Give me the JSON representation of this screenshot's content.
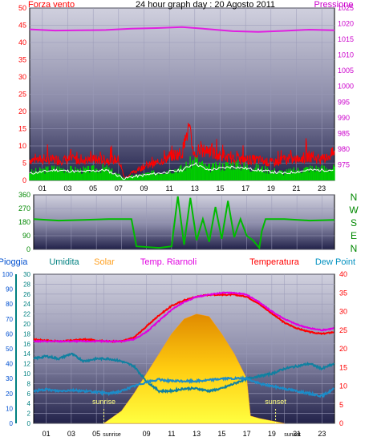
{
  "chart_data": [
    {
      "type": "line",
      "title": "24 hour graph day : 20 Agosto 2011",
      "left_axis_label": "Forza vento",
      "right_axis_label": "Pressione",
      "ylim_left": [
        0,
        50
      ],
      "yticks_left": [
        0,
        5,
        10,
        15,
        20,
        25,
        30,
        35,
        40,
        45,
        50
      ],
      "ylim_right": [
        970,
        1025
      ],
      "yticks_right": [
        975,
        980,
        985,
        990,
        995,
        1000,
        1005,
        1010,
        1015,
        1020,
        1025
      ],
      "xlim": [
        0,
        24
      ],
      "x_tick_labels": [
        "01",
        "03",
        "05",
        "07",
        "09",
        "11",
        "13",
        "15",
        "17",
        "19",
        "21",
        "23"
      ],
      "colors": {
        "pressure": "#e020e0",
        "gust": "#ff0000",
        "wind_avg": "#00cc00",
        "wind_dir_line": "#ffffff",
        "title": "#000000",
        "left_label": "#ff0000",
        "right_label": "#cc00cc"
      },
      "series": [
        {
          "name": "Pressione",
          "axis": "right",
          "x": [
            0,
            2,
            4,
            6,
            8,
            10,
            12,
            14,
            16,
            18,
            20,
            22,
            24
          ],
          "values": [
            1018.2,
            1017.8,
            1017.9,
            1018.0,
            1018.4,
            1018.6,
            1018.9,
            1018.3,
            1017.6,
            1017.4,
            1017.7,
            1018.1,
            1017.9
          ]
        },
        {
          "axis": "left",
          "x": [
            0,
            1,
            2,
            3,
            4,
            5,
            6,
            7,
            7.5,
            8,
            9,
            10,
            11,
            12,
            12.5,
            13,
            14,
            15,
            16,
            17,
            18,
            19,
            20,
            21,
            22,
            23,
            24
          ],
          "values": [
            6,
            6,
            6,
            6,
            6,
            6,
            6,
            6,
            0.5,
            2,
            4,
            5,
            7,
            8,
            15,
            7,
            9,
            7,
            6,
            6,
            6,
            5,
            6,
            6,
            7,
            6,
            8
          ]
        },
        {
          "axis": "left",
          "x": [
            0,
            2,
            4,
            6,
            7.5,
            8,
            10,
            12,
            13,
            14,
            16,
            18,
            20,
            22,
            24
          ],
          "values": [
            2,
            3,
            2.5,
            3,
            0.5,
            1,
            2,
            3,
            5,
            3,
            4,
            3,
            2,
            3,
            3
          ]
        }
      ]
    },
    {
      "type": "line",
      "right_axis_label": "N W S E N",
      "ylim": [
        0,
        360
      ],
      "yticks": [
        0,
        90,
        180,
        270,
        360
      ],
      "xlim": [
        0,
        24
      ],
      "colors": {
        "direction": "#00bb00",
        "side_label": "#008800"
      },
      "series": [
        {
          "x": [
            0,
            2,
            4,
            6,
            7.8,
            8.2,
            10,
            11,
            11.5,
            12,
            12.5,
            13,
            13.5,
            14,
            14.5,
            15,
            15.5,
            16,
            16.5,
            17,
            17.5,
            18,
            18.2,
            18.5,
            20,
            22,
            24
          ],
          "values": [
            200,
            190,
            195,
            200,
            200,
            20,
            10,
            20,
            350,
            30,
            340,
            60,
            200,
            50,
            280,
            70,
            320,
            80,
            200,
            90,
            60,
            10,
            120,
            200,
            200,
            190,
            195
          ]
        }
      ]
    },
    {
      "type": "area",
      "legend": [
        "Pioggia",
        "Umidita",
        "Solar",
        "Temp. Riarnoli",
        "Temperatura",
        "Dew Point"
      ],
      "legend_colors": [
        "#0050d0",
        "#008080",
        "#ffa020",
        "#e000e0",
        "#ff0000",
        "#0090c0"
      ],
      "axis_pioggia": {
        "ylim": [
          0,
          100
        ],
        "ticks": [
          0,
          10,
          20,
          30,
          40,
          50,
          60,
          70,
          80,
          90,
          100
        ]
      },
      "axis_umidita": {
        "ylim": [
          0,
          30
        ],
        "ticks": [
          0,
          2,
          4,
          6,
          8,
          10,
          12,
          14,
          16,
          18,
          20,
          22,
          24,
          26,
          28,
          30
        ]
      },
      "axis_temp": {
        "ylim": [
          0,
          40
        ],
        "ticks": [
          0,
          5,
          10,
          15,
          20,
          25,
          30,
          35,
          40
        ]
      },
      "xlim": [
        0,
        24
      ],
      "x_tick_labels": [
        "01",
        "03",
        "05",
        "sunrise",
        "09",
        "11",
        "13",
        "15",
        "17",
        "19",
        "sunset",
        "21",
        "23"
      ],
      "annotations": [
        "sunrise",
        "sunset"
      ],
      "series": [
        {
          "name": "Temperatura",
          "axis": "temp",
          "x": [
            0,
            2,
            4,
            6,
            7,
            8,
            9,
            10,
            11,
            12,
            13,
            14,
            15,
            16,
            17,
            18,
            19,
            20,
            21,
            22,
            23,
            24
          ],
          "values": [
            22.5,
            22,
            22.5,
            22,
            22,
            23,
            26,
            29,
            31.5,
            33,
            34,
            34.5,
            34.5,
            34.5,
            34,
            32,
            29.5,
            27,
            25.5,
            24.5,
            24,
            24.5
          ]
        },
        {
          "name": "Temp. Riarnoli",
          "axis": "temp",
          "x": [
            0,
            6,
            7,
            8,
            9,
            10,
            11,
            12,
            13,
            14,
            15,
            16,
            17,
            18,
            19,
            20,
            21,
            22,
            23,
            24
          ],
          "values": [
            22,
            22,
            22,
            22.5,
            24.5,
            27.5,
            30.5,
            32.5,
            34,
            34.5,
            35,
            35,
            34.5,
            32.5,
            30,
            28,
            26.5,
            25.5,
            25,
            25.5
          ]
        },
        {
          "name": "Umidita",
          "axis": "umidita",
          "x": [
            0,
            1,
            2,
            3,
            4,
            5,
            6,
            7,
            8,
            9,
            10,
            11,
            12,
            13,
            14,
            15,
            16,
            17,
            18,
            19,
            20,
            21,
            22,
            23,
            24
          ],
          "values": [
            13,
            13.5,
            13,
            14,
            12.5,
            13,
            13,
            12.5,
            11.5,
            8.5,
            6.5,
            6.5,
            7,
            7,
            6.5,
            7,
            8,
            9,
            9.5,
            10,
            11,
            11.5,
            12,
            11,
            12
          ]
        },
        {
          "name": "Dew Point",
          "axis": "umidita",
          "x": [
            0,
            1,
            2,
            3,
            4,
            5,
            6,
            7,
            8,
            9,
            10,
            11,
            12,
            13,
            14,
            15,
            16,
            17,
            18,
            19,
            20,
            21,
            22,
            23,
            24
          ],
          "values": [
            6.5,
            6.8,
            6.5,
            6.7,
            6.5,
            6.3,
            6.0,
            6.5,
            7.5,
            8.3,
            8.8,
            8.5,
            8.5,
            8.5,
            8.7,
            9.0,
            9.0,
            9.0,
            8.0,
            7.5,
            7.0,
            6.5,
            6.0,
            5.5,
            7.0
          ]
        },
        {
          "name": "Solar",
          "axis": "umidita",
          "x": [
            5.6,
            7,
            8,
            9,
            10,
            11,
            12,
            13,
            14,
            15,
            16,
            17,
            17.3,
            18,
            19,
            20
          ],
          "values": [
            0,
            2.5,
            6,
            10,
            14,
            18,
            21,
            22,
            21.5,
            18,
            14,
            9,
            1.5,
            1,
            0.5,
            0
          ]
        }
      ]
    }
  ]
}
